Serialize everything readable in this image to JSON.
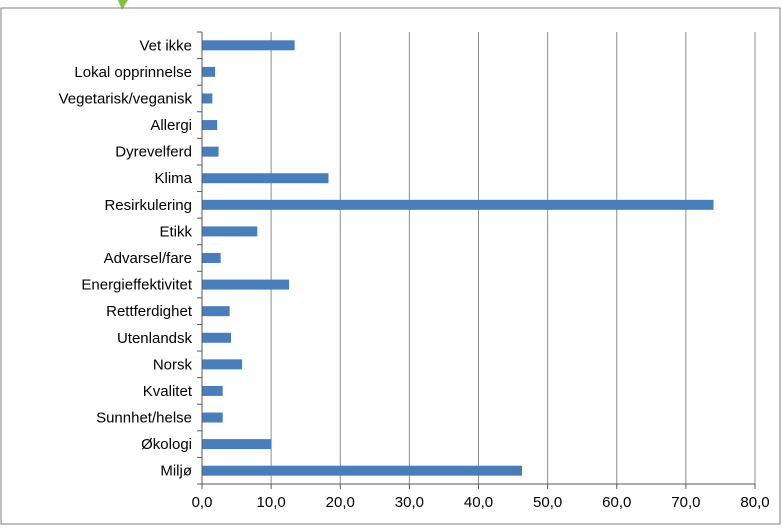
{
  "chart_data": {
    "type": "bar",
    "orientation": "horizontal",
    "categories": [
      "Vet ikke",
      "Lokal opprinnelse",
      "Vegetarisk/veganisk",
      "Allergi",
      "Dyrevelferd",
      "Klima",
      "Resirkulering",
      "Etikk",
      "Advarsel/fare",
      "Energieffektivitet",
      "Rettferdighet",
      "Utenlandsk",
      "Norsk",
      "Kvalitet",
      "Sunnhet/helse",
      "Økologi",
      "Miljø"
    ],
    "values": [
      13.4,
      1.9,
      1.5,
      2.2,
      2.4,
      18.3,
      74.0,
      8.0,
      2.7,
      12.6,
      4.0,
      4.2,
      5.8,
      3.0,
      3.0,
      10.0,
      46.3
    ],
    "xticks": [
      "0,0",
      "10,0",
      "20,0",
      "30,0",
      "40,0",
      "50,0",
      "60,0",
      "70,0",
      "80,0"
    ],
    "xlim": [
      0,
      80
    ],
    "grid": true,
    "legend": "none",
    "bar_color": "#4a7ebb",
    "grid_color": "#8c8c8c",
    "axis_color": "#595959",
    "frame_color": "#7f7f7f",
    "logo_color": "#7dc242"
  }
}
